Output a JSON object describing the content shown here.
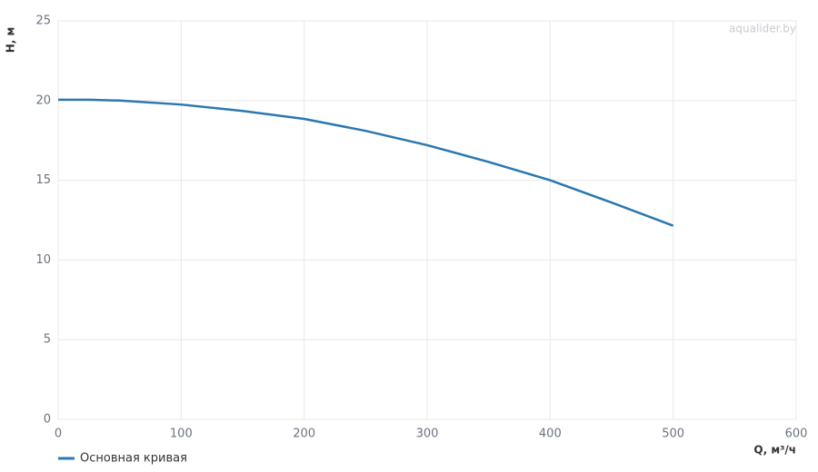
{
  "chart_data": {
    "type": "line",
    "x_label": "Q, м³/ч",
    "y_label": "H, м",
    "watermark": "aqualider.by",
    "x": [
      0,
      25,
      50,
      100,
      150,
      200,
      250,
      300,
      350,
      400,
      450,
      500
    ],
    "series": [
      {
        "name": "Основная кривая",
        "color": "#2a78b0",
        "values": [
          20.05,
          20.05,
          20.0,
          19.75,
          19.35,
          18.85,
          18.1,
          17.2,
          16.15,
          15.0,
          13.6,
          12.15
        ]
      }
    ],
    "xlim": [
      0,
      600
    ],
    "ylim": [
      0,
      25
    ],
    "xticks": [
      0,
      100,
      200,
      300,
      400,
      500,
      600
    ],
    "yticks": [
      0,
      5,
      10,
      15,
      20,
      25
    ],
    "grid": true
  }
}
